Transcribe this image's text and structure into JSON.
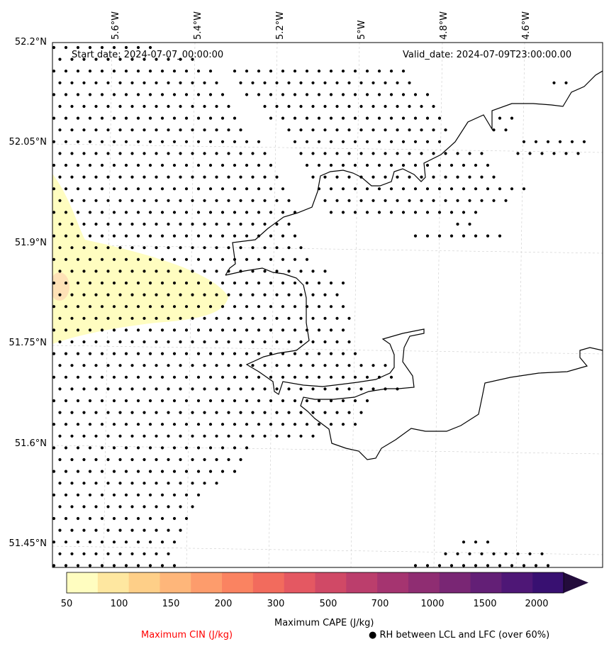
{
  "annotations": {
    "start_date": "Start date: 2024-07-07_00:00:00",
    "valid_date": "Valid_date: 2024-07-09T23:00:00.00"
  },
  "axes": {
    "lat_labels": [
      "52.2°N",
      "52.05°N",
      "51.9°N",
      "51.75°N",
      "51.6°N",
      "51.45°N"
    ],
    "lon_labels": [
      "5.6°W",
      "5.4°W",
      "5.2°W",
      "5°W",
      "4.8°W",
      "4.6°W"
    ]
  },
  "colorbar": {
    "ticks": [
      "50",
      "100",
      "150",
      "200",
      "300",
      "500",
      "700",
      "1000",
      "1500",
      "2000"
    ],
    "colors": [
      "#fffdc0",
      "#fee7a0",
      "#fecf88",
      "#feb67a",
      "#fd9c6c",
      "#fa8361",
      "#f26b5d",
      "#e45862",
      "#d04966",
      "#bb3e6c",
      "#a53470",
      "#8f2d72",
      "#792674",
      "#631f76",
      "#4e1776",
      "#381071",
      "#230c3c"
    ],
    "label": "Maximum CAPE (J/kg)"
  },
  "legend": {
    "cin_label": "Maximum CIN (J/kg)",
    "cin_color": "#ff0000",
    "rh_label": "● RH between LCL and LFC (over 60%)"
  }
}
